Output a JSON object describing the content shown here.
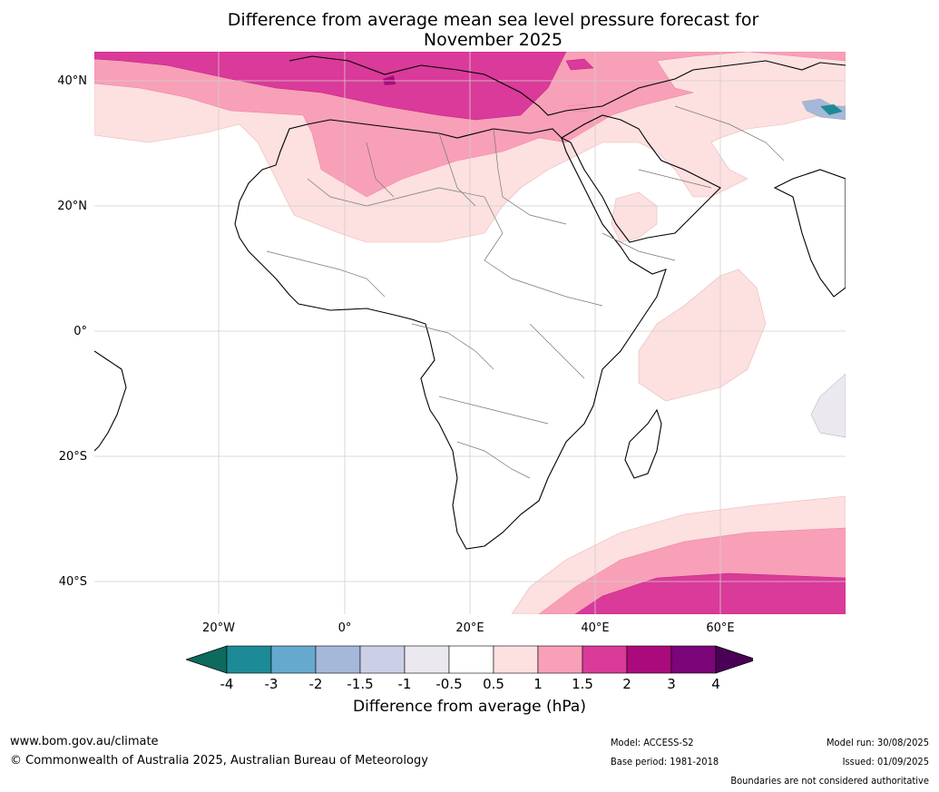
{
  "title": {
    "line1": "Difference from average mean sea level pressure forecast for",
    "line2": "November 2025"
  },
  "map": {
    "lat_labels": [
      "40°N",
      "20°N",
      "0°",
      "20°S",
      "40°S"
    ],
    "lon_labels": [
      "20°W",
      "0°",
      "20°E",
      "40°E",
      "60°E"
    ],
    "extent": {
      "lon": [
        -40,
        80
      ],
      "lat": [
        -45,
        45
      ]
    }
  },
  "colorbar": {
    "ticks": [
      "-4",
      "-3",
      "-2",
      "-1.5",
      "-1",
      "-0.5",
      "0.5",
      "1",
      "1.5",
      "2",
      "3",
      "4"
    ],
    "colors": [
      "#0c6b5d",
      "#1c8b97",
      "#66a9cf",
      "#a5b8d9",
      "#ccd0e6",
      "#ebe9ef",
      "#ffffff",
      "#fde0e0",
      "#f8a0b8",
      "#da3a99",
      "#ab0a7d",
      "#7b0579",
      "#4b0057"
    ],
    "label": "Difference from average (hPa)"
  },
  "footer": {
    "url": "www.bom.gov.au/climate",
    "copyright": "© Commonwealth of Australia 2025, Australian Bureau of Meteorology",
    "model": "Model: ACCESS-S2",
    "base_period": "Base period: 1981-2018",
    "model_run": "Model run: 30/08/2025",
    "issued": "Issued: 01/09/2025",
    "disclaimer": "Boundaries are not considered authoritative"
  }
}
